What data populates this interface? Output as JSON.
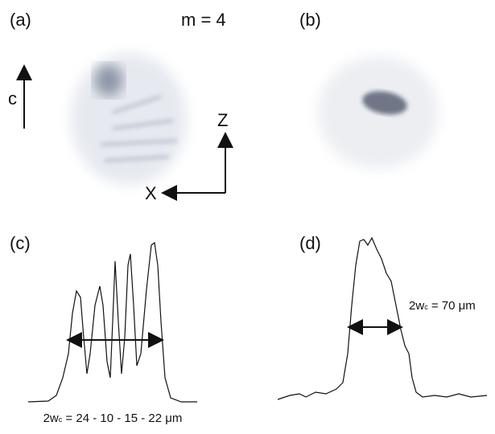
{
  "panels": {
    "a": "(a)",
    "b": "(b)",
    "c": "(c)",
    "d": "(d)"
  },
  "mode_label": "m = 4",
  "axes": {
    "c": "c",
    "z": "Z",
    "x": "X"
  },
  "widths": {
    "c": {
      "prefix": "2w",
      "sub": "c",
      "rest": " = 24 - 10 - 15 - 22 μm"
    },
    "d": {
      "prefix": "2w",
      "sub": "c",
      "rest": " = 70 μm"
    }
  }
}
